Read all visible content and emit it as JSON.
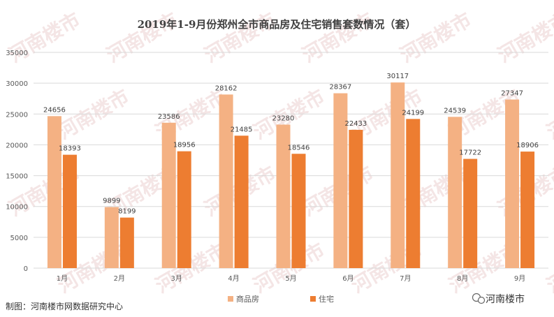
{
  "chart_data": {
    "type": "bar",
    "title": "2019年1-9月份郑州全市商品房及住宅销售套数情况（套）",
    "categories": [
      "1月",
      "2月",
      "3月",
      "4月",
      "5月",
      "6月",
      "7月",
      "8月",
      "9月"
    ],
    "series": [
      {
        "name": "商品房",
        "values": [
          24656,
          9899,
          23586,
          28162,
          23280,
          28367,
          30117,
          24539,
          27347
        ]
      },
      {
        "name": "住宅",
        "values": [
          18393,
          8199,
          18956,
          21485,
          18546,
          22433,
          24199,
          17722,
          18906
        ]
      }
    ],
    "ylim": [
      0,
      35000
    ],
    "yticks": [
      0,
      5000,
      10000,
      15000,
      20000,
      25000,
      30000,
      35000
    ],
    "grid": true,
    "legend": "bottom-center",
    "colors": {
      "series_0": "#F4B183",
      "series_1": "#ED7D31",
      "grid": "#d9d9d9",
      "watermark": "#e7c6c6"
    }
  },
  "footer": {
    "credit": "制图：河南楼市网数据研究中心",
    "brand": "河南楼市",
    "brand_icon": "wechat-icon"
  },
  "watermark": {
    "text": "河南楼市",
    "url": "www.hnloushi.com"
  }
}
